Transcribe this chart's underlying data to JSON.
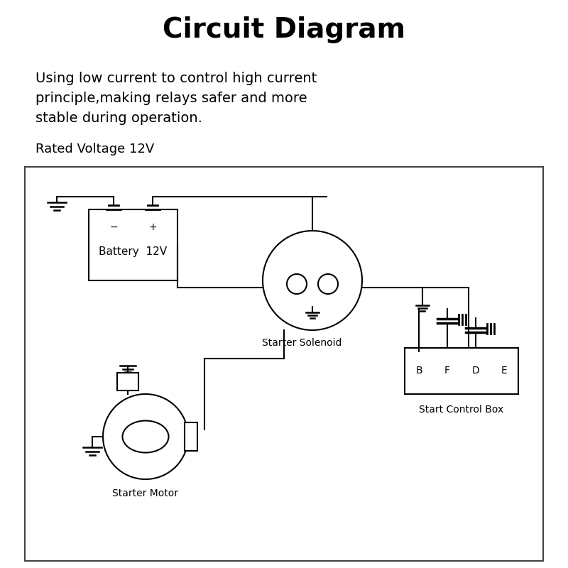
{
  "title": "Circuit Diagram",
  "title_fontsize": 28,
  "title_fontweight": "bold",
  "description_lines": [
    "Using low current to control high current",
    "principle,making relays safer and more",
    "stable during operation."
  ],
  "desc_fontsize": 14,
  "rated_voltage_text": "Rated Voltage 12V",
  "rated_fontsize": 13,
  "background_color": "#ffffff",
  "line_color": "#000000",
  "component_labels": {
    "battery": "Battery  12V",
    "solenoid": "Starter Solenoid",
    "motor": "Starter Motor",
    "control_box": "Start Control Box",
    "box_terminals": [
      "B",
      "F",
      "D",
      "E"
    ]
  }
}
